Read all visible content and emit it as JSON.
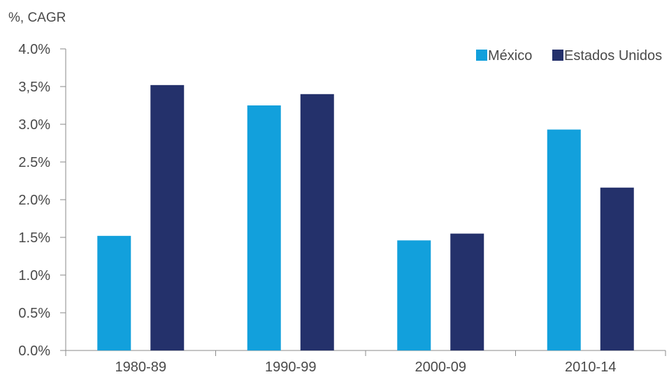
{
  "chart_data": {
    "type": "bar",
    "unit_label": "%, CAGR",
    "categories": [
      "1980-89",
      "1990-99",
      "2000-09",
      "2010-14"
    ],
    "series": [
      {
        "name": "México",
        "color": "#12a0dc",
        "values": [
          1.52,
          3.25,
          1.46,
          2.93
        ]
      },
      {
        "name": "Estados Unidos",
        "color": "#24316b",
        "values": [
          3.52,
          3.4,
          1.55,
          2.16
        ]
      }
    ],
    "y_ticks": [
      "0.0%",
      "0.5%",
      "1.0%",
      "1.5%",
      "2.0%",
      "2.5%",
      "3.0%",
      "3,5%",
      "4.0%"
    ],
    "ylim": [
      0,
      4
    ],
    "grid": false,
    "legend_position": "top-right"
  }
}
